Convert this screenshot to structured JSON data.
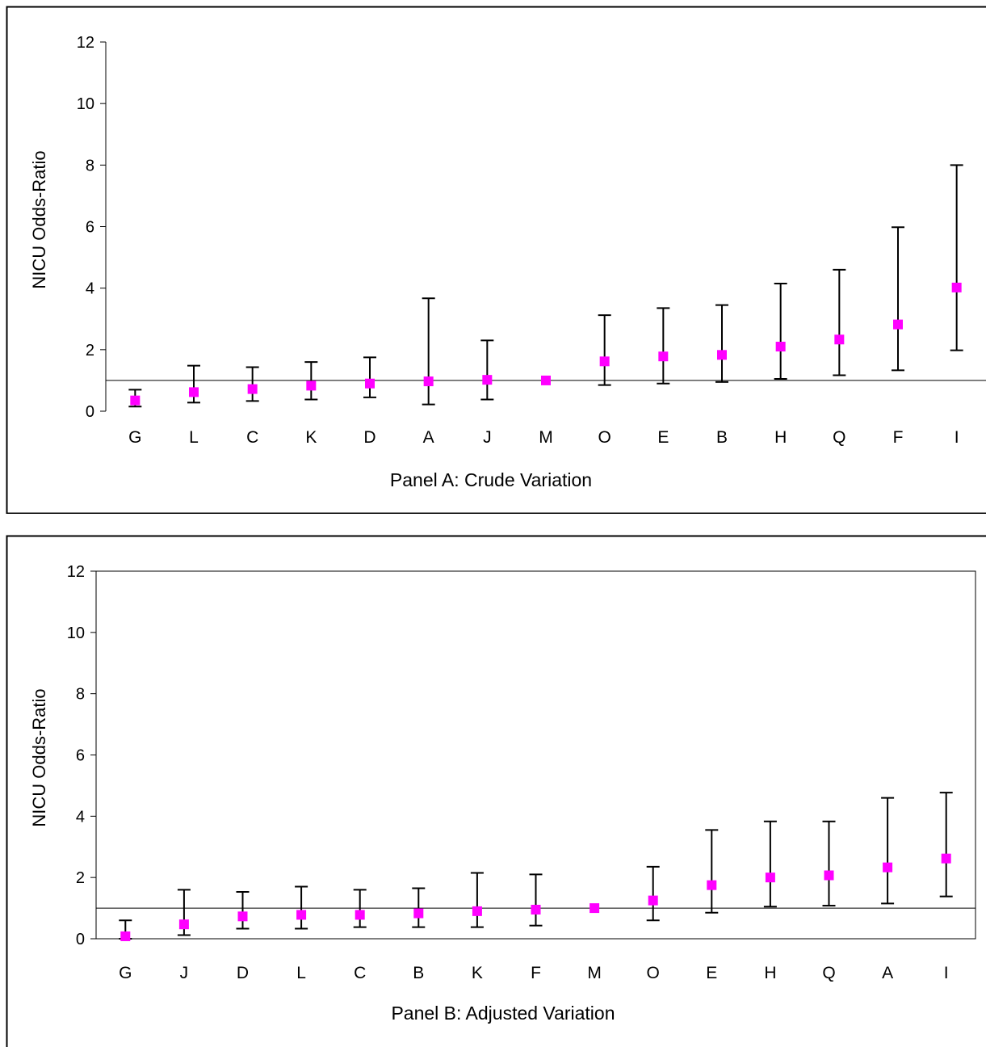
{
  "chart_data": [
    {
      "type": "scatter",
      "title": "Panel A: Crude Variation",
      "xlabel": "Panel A: Crude Variation",
      "ylabel": "NICU Odds-Ratio",
      "ylim": [
        0,
        12
      ],
      "yticks": [
        0,
        2,
        4,
        6,
        8,
        10,
        12
      ],
      "reference_line": 1,
      "categories": [
        "G",
        "L",
        "C",
        "K",
        "D",
        "A",
        "J",
        "M",
        "O",
        "E",
        "B",
        "H",
        "Q",
        "F",
        "I"
      ],
      "values": [
        0.35,
        0.62,
        0.72,
        0.83,
        0.9,
        0.97,
        1.02,
        1.0,
        1.62,
        1.78,
        1.83,
        2.1,
        2.33,
        2.82,
        4.02
      ],
      "lower": [
        0.15,
        0.28,
        0.33,
        0.38,
        0.45,
        0.22,
        0.38,
        1.0,
        0.85,
        0.9,
        0.95,
        1.05,
        1.17,
        1.33,
        1.98
      ],
      "upper": [
        0.7,
        1.48,
        1.43,
        1.6,
        1.75,
        3.67,
        2.3,
        1.0,
        3.12,
        3.35,
        3.45,
        4.15,
        4.6,
        5.98,
        8.0
      ],
      "marker_color": "#ff00ff"
    },
    {
      "type": "scatter",
      "title": "Panel B: Adjusted Variation",
      "xlabel": "Panel B: Adjusted Variation",
      "ylabel": "NICU Odds-Ratio",
      "ylim": [
        0,
        12
      ],
      "yticks": [
        0,
        2,
        4,
        6,
        8,
        10,
        12
      ],
      "reference_line": 1,
      "categories": [
        "G",
        "J",
        "D",
        "L",
        "C",
        "B",
        "K",
        "F",
        "M",
        "O",
        "E",
        "H",
        "Q",
        "A",
        "I"
      ],
      "values": [
        0.08,
        0.47,
        0.73,
        0.78,
        0.78,
        0.83,
        0.9,
        0.95,
        1.0,
        1.25,
        1.75,
        2.0,
        2.07,
        2.33,
        2.62
      ],
      "lower": [
        0.0,
        0.12,
        0.33,
        0.33,
        0.38,
        0.38,
        0.38,
        0.43,
        1.0,
        0.6,
        0.85,
        1.05,
        1.08,
        1.15,
        1.38
      ],
      "upper": [
        0.6,
        1.6,
        1.53,
        1.7,
        1.6,
        1.65,
        2.15,
        2.1,
        1.0,
        2.35,
        3.55,
        3.83,
        3.83,
        4.6,
        4.77
      ],
      "marker_color": "#ff00ff"
    }
  ]
}
